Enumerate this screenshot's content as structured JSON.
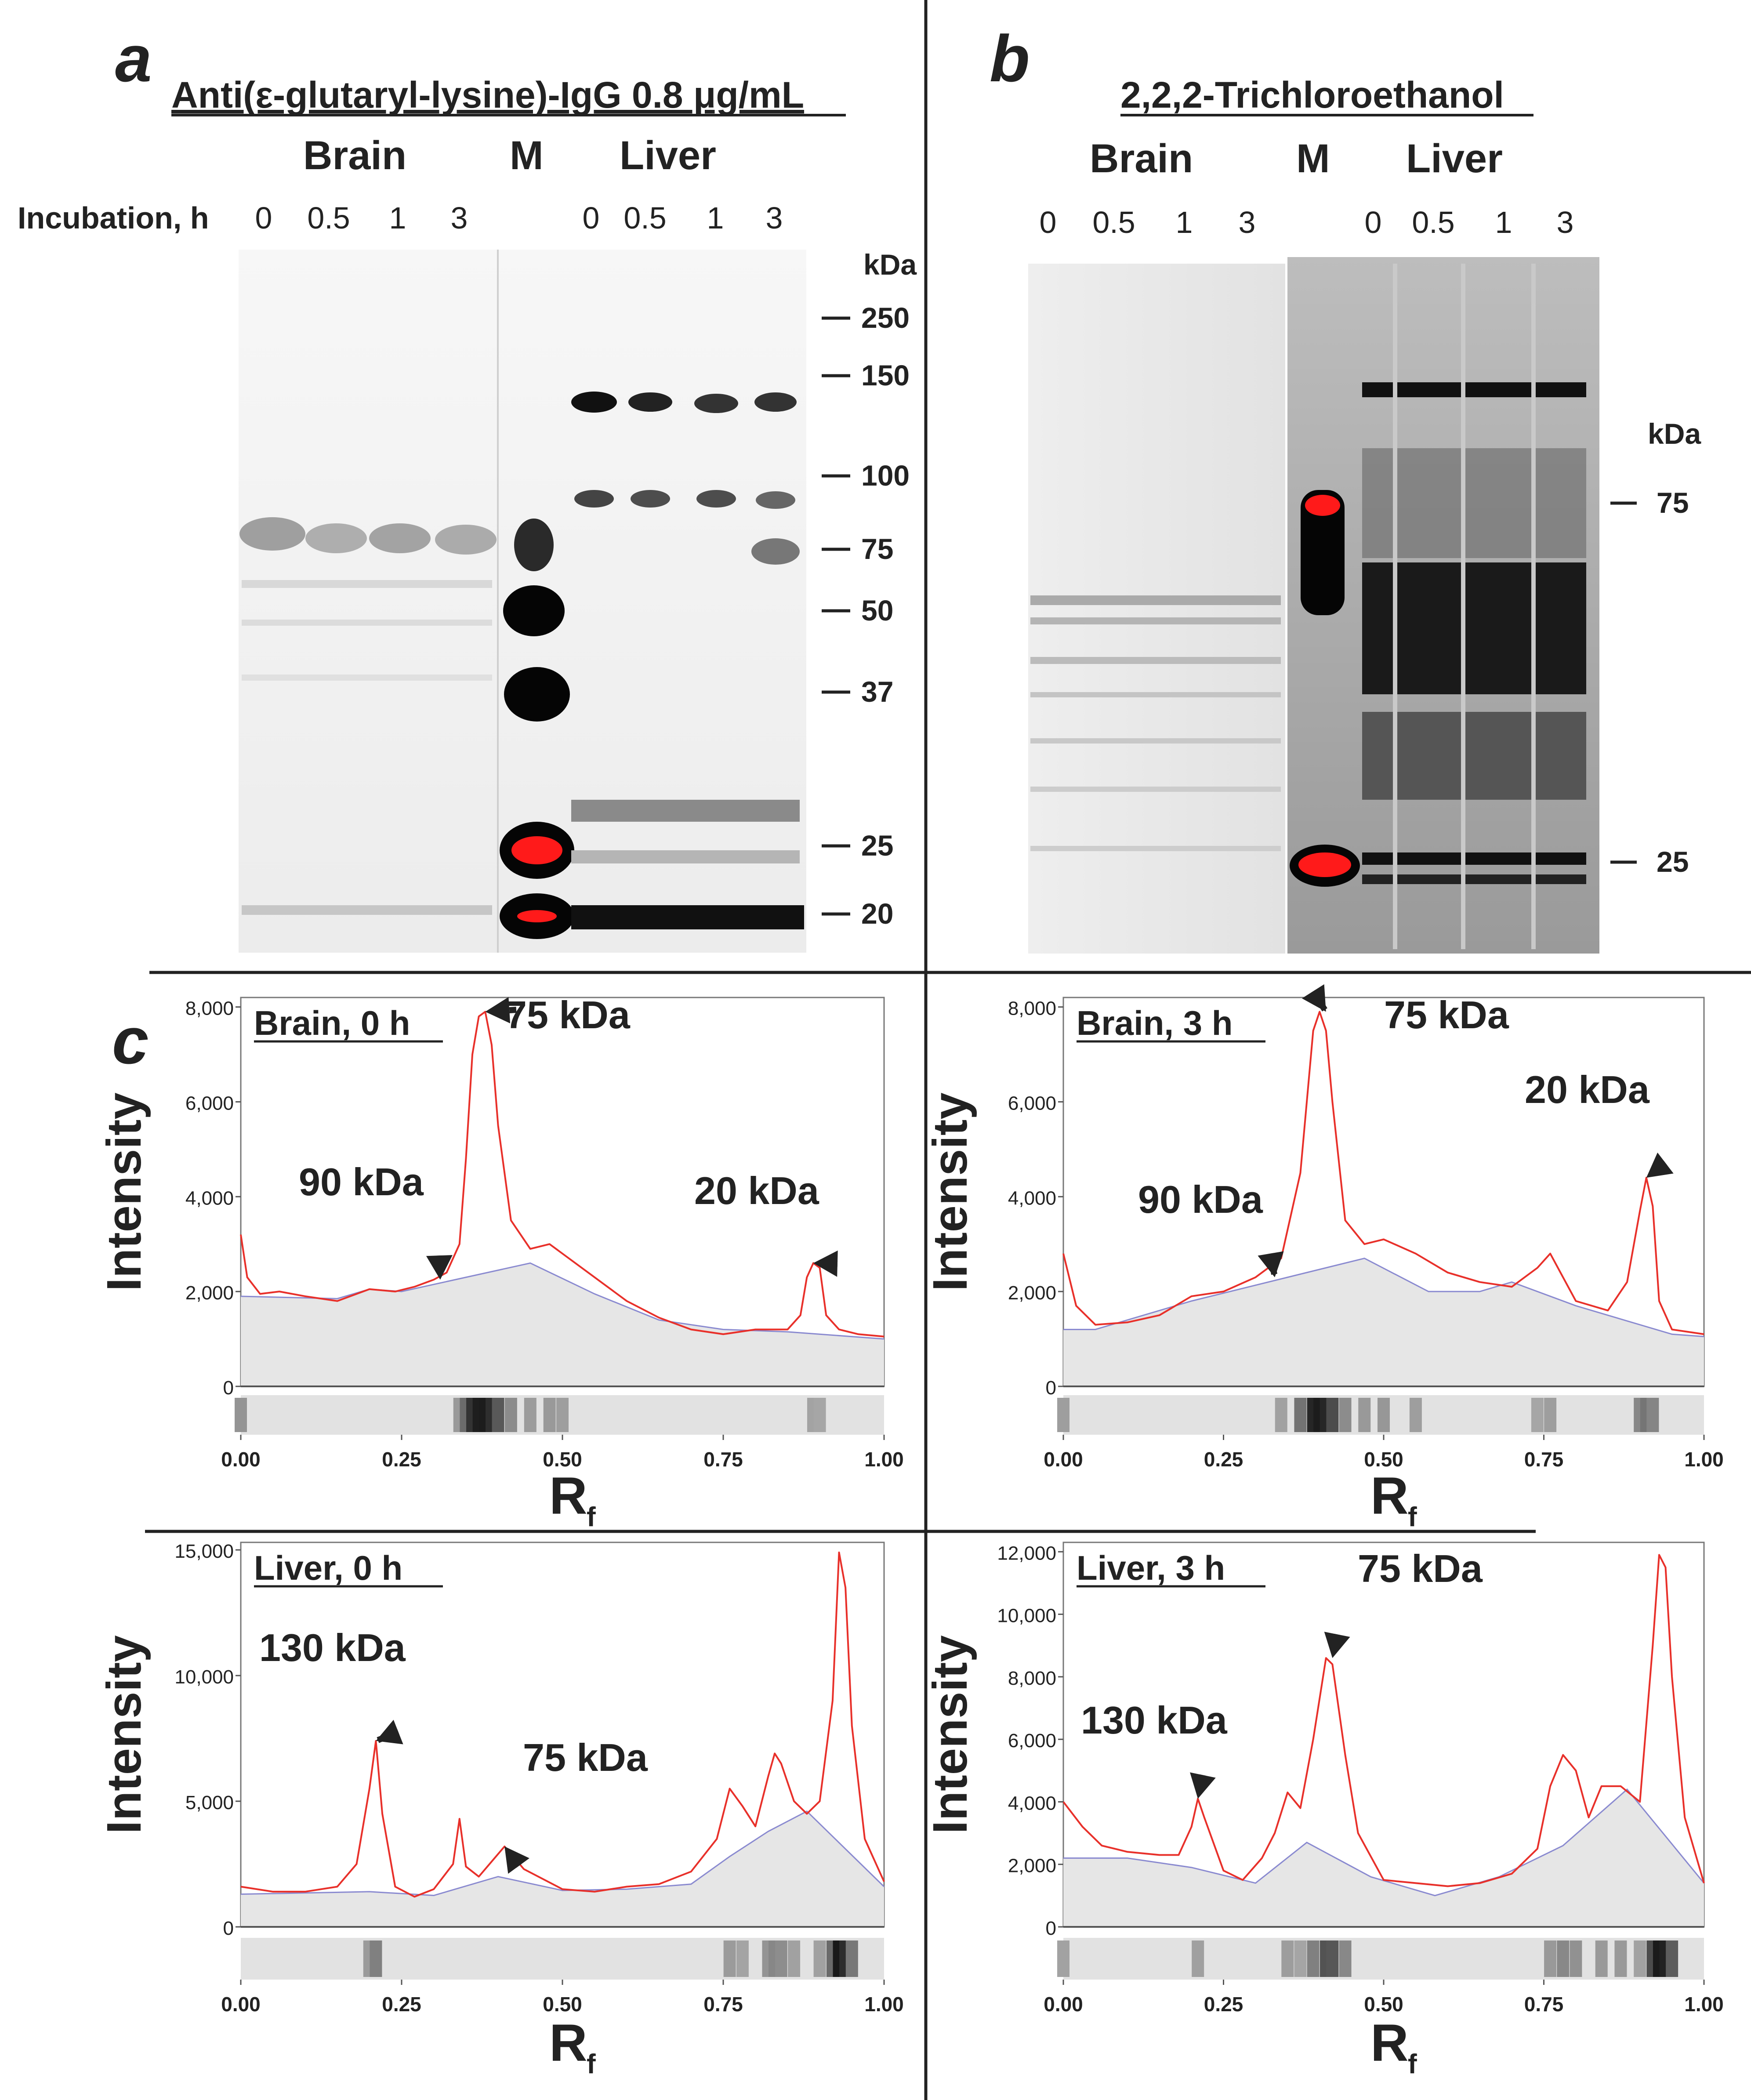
{
  "panel_a": {
    "letter": "a",
    "title": "Anti(ε-glutaryl-lysine)-IgG 0.8 μg/mL",
    "brain": "Brain",
    "marker": "M",
    "liver": "Liver",
    "incubation_label": "Incubation, h",
    "times": [
      "0",
      "0.5",
      "1",
      "3"
    ],
    "kda": "kDa",
    "markers": [
      "250",
      "150",
      "100",
      "75",
      "50",
      "37",
      "25",
      "20"
    ]
  },
  "panel_b": {
    "letter": "b",
    "title": "2,2,2-Trichloroethanol",
    "brain": "Brain",
    "marker": "M",
    "liver": "Liver",
    "times": [
      "0",
      "0.5",
      "1",
      "3"
    ],
    "kda": "kDa",
    "markers": [
      "75",
      "25"
    ]
  },
  "panel_c": {
    "letter": "c"
  },
  "colors": {
    "profile": "#e8302a",
    "baseline": "#8a8ad0",
    "fill": "#e6e6e6",
    "marker_saturation": "#ff1a1a"
  },
  "chart_data": [
    {
      "type": "line",
      "title": "Brain, 0 h",
      "xlabel": "R",
      "xlabel_sub": "f",
      "ylabel": "Intensity",
      "xlim": [
        0,
        1
      ],
      "ylim": [
        0,
        8200
      ],
      "xticks": [
        "0.00",
        "0.25",
        "0.50",
        "0.75",
        "1.00"
      ],
      "yticks": [
        {
          "v": 0,
          "label": "0"
        },
        {
          "v": 2000,
          "label": "2,000"
        },
        {
          "v": 4000,
          "label": "4,000"
        },
        {
          "v": 6000,
          "label": "6,000"
        },
        {
          "v": 8000,
          "label": "8,000"
        }
      ],
      "profile": {
        "x": [
          0,
          0.01,
          0.03,
          0.06,
          0.1,
          0.15,
          0.2,
          0.24,
          0.27,
          0.3,
          0.32,
          0.34,
          0.35,
          0.36,
          0.37,
          0.38,
          0.39,
          0.4,
          0.42,
          0.45,
          0.48,
          0.5,
          0.55,
          0.6,
          0.65,
          0.7,
          0.75,
          0.8,
          0.85,
          0.87,
          0.88,
          0.89,
          0.9,
          0.91,
          0.93,
          0.96,
          1.0
        ],
        "y": [
          3200,
          2300,
          1950,
          2000,
          1900,
          1800,
          2050,
          2000,
          2100,
          2250,
          2400,
          3000,
          4800,
          7000,
          7800,
          7900,
          7200,
          5500,
          3500,
          2900,
          3000,
          2800,
          2300,
          1800,
          1450,
          1200,
          1100,
          1200,
          1200,
          1500,
          2300,
          2600,
          2500,
          1500,
          1200,
          1100,
          1050
        ]
      },
      "baseline": {
        "x": [
          0,
          0.15,
          0.2,
          0.25,
          0.35,
          0.45,
          0.55,
          0.65,
          0.75,
          0.85,
          1.0
        ],
        "y": [
          1900,
          1850,
          2050,
          2000,
          2300,
          2600,
          1950,
          1400,
          1200,
          1150,
          1000
        ]
      },
      "annotations": [
        {
          "text": "75 kDa",
          "x": 0.38,
          "y": 7900
        },
        {
          "text": "90 kDa",
          "x": 0.31,
          "y": 2250
        },
        {
          "text": "20 kDa",
          "x": 0.89,
          "y": 2600
        }
      ]
    },
    {
      "type": "line",
      "title": "Brain, 3 h",
      "xlabel": "R",
      "xlabel_sub": "f",
      "ylabel": "Intensity",
      "xlim": [
        0,
        1
      ],
      "ylim": [
        0,
        8200
      ],
      "xticks": [
        "0.00",
        "0.25",
        "0.50",
        "0.75",
        "1.00"
      ],
      "yticks": [
        {
          "v": 0,
          "label": "0"
        },
        {
          "v": 2000,
          "label": "2,000"
        },
        {
          "v": 4000,
          "label": "4,000"
        },
        {
          "v": 6000,
          "label": "6,000"
        },
        {
          "v": 8000,
          "label": "8,000"
        }
      ],
      "profile": {
        "x": [
          0,
          0.02,
          0.05,
          0.1,
          0.15,
          0.2,
          0.25,
          0.3,
          0.34,
          0.37,
          0.39,
          0.4,
          0.41,
          0.42,
          0.44,
          0.47,
          0.5,
          0.55,
          0.6,
          0.65,
          0.7,
          0.74,
          0.76,
          0.78,
          0.8,
          0.85,
          0.88,
          0.9,
          0.91,
          0.92,
          0.93,
          0.95,
          1.0
        ],
        "y": [
          2800,
          1700,
          1300,
          1350,
          1500,
          1900,
          2000,
          2300,
          2700,
          4500,
          7500,
          7900,
          7500,
          6000,
          3500,
          3000,
          3100,
          2800,
          2400,
          2200,
          2100,
          2500,
          2800,
          2300,
          1800,
          1600,
          2200,
          3700,
          4400,
          3800,
          1800,
          1200,
          1100
        ]
      },
      "baseline": {
        "x": [
          0,
          0.05,
          0.2,
          0.35,
          0.47,
          0.57,
          0.65,
          0.7,
          0.8,
          0.95,
          1.0
        ],
        "y": [
          1200,
          1200,
          1800,
          2300,
          2700,
          2000,
          2000,
          2200,
          1700,
          1100,
          1050
        ]
      },
      "annotations": [
        {
          "text": "75 kDa",
          "x": 0.41,
          "y": 7900
        },
        {
          "text": "90 kDa",
          "x": 0.33,
          "y": 2300
        },
        {
          "text": "20 kDa",
          "x": 0.91,
          "y": 4400
        }
      ]
    },
    {
      "type": "line",
      "title": "Liver, 0 h",
      "xlabel": "R",
      "xlabel_sub": "f",
      "ylabel": "Intensity",
      "xlim": [
        0,
        1
      ],
      "ylim": [
        0,
        15300
      ],
      "xticks": [
        "0.00",
        "0.25",
        "0.50",
        "0.75",
        "1.00"
      ],
      "yticks": [
        {
          "v": 0,
          "label": "0"
        },
        {
          "v": 5000,
          "label": "5,000"
        },
        {
          "v": 10000,
          "label": "10,000"
        },
        {
          "v": 15000,
          "label": "15,000"
        }
      ],
      "profile": {
        "x": [
          0,
          0.05,
          0.1,
          0.15,
          0.18,
          0.2,
          0.21,
          0.22,
          0.24,
          0.27,
          0.3,
          0.33,
          0.34,
          0.35,
          0.37,
          0.39,
          0.41,
          0.44,
          0.5,
          0.55,
          0.6,
          0.65,
          0.7,
          0.74,
          0.76,
          0.78,
          0.8,
          0.82,
          0.83,
          0.84,
          0.86,
          0.88,
          0.9,
          0.92,
          0.93,
          0.94,
          0.95,
          0.97,
          1.0
        ],
        "y": [
          1600,
          1400,
          1400,
          1600,
          2500,
          5500,
          7400,
          4500,
          1600,
          1200,
          1500,
          2500,
          4300,
          2400,
          2000,
          2600,
          3200,
          2300,
          1500,
          1400,
          1600,
          1700,
          2200,
          3500,
          5500,
          4800,
          4000,
          6000,
          6900,
          6500,
          5000,
          4500,
          5000,
          9000,
          14900,
          13500,
          8000,
          3500,
          1800
        ]
      },
      "baseline": {
        "x": [
          0,
          0.1,
          0.2,
          0.3,
          0.4,
          0.5,
          0.6,
          0.7,
          0.76,
          0.82,
          0.88,
          1.0
        ],
        "y": [
          1300,
          1350,
          1400,
          1250,
          2000,
          1450,
          1500,
          1700,
          2800,
          3800,
          4600,
          1600
        ]
      },
      "annotations": [
        {
          "text": "130 kDa",
          "x": 0.21,
          "y": 7400
        },
        {
          "text": "75 kDa",
          "x": 0.41,
          "y": 3200
        }
      ]
    },
    {
      "type": "line",
      "title": "Liver, 3 h",
      "xlabel": "R",
      "xlabel_sub": "f",
      "ylabel": "Intensity",
      "xlim": [
        0,
        1
      ],
      "ylim": [
        0,
        12300
      ],
      "xticks": [
        "0.00",
        "0.25",
        "0.50",
        "0.75",
        "1.00"
      ],
      "yticks": [
        {
          "v": 0,
          "label": "0"
        },
        {
          "v": 2000,
          "label": "2,000"
        },
        {
          "v": 4000,
          "label": "4,000"
        },
        {
          "v": 6000,
          "label": "6,000"
        },
        {
          "v": 8000,
          "label": "8,000"
        },
        {
          "v": 10000,
          "label": "10,000"
        },
        {
          "v": 12000,
          "label": "12,000"
        }
      ],
      "profile": {
        "x": [
          0,
          0.03,
          0.06,
          0.1,
          0.15,
          0.18,
          0.2,
          0.21,
          0.22,
          0.25,
          0.28,
          0.31,
          0.33,
          0.35,
          0.37,
          0.39,
          0.41,
          0.42,
          0.44,
          0.46,
          0.5,
          0.55,
          0.6,
          0.65,
          0.7,
          0.74,
          0.76,
          0.78,
          0.8,
          0.82,
          0.84,
          0.87,
          0.9,
          0.92,
          0.93,
          0.94,
          0.95,
          0.97,
          1.0
        ],
        "y": [
          4000,
          3200,
          2600,
          2400,
          2300,
          2300,
          3200,
          4100,
          3500,
          1800,
          1500,
          2200,
          3000,
          4300,
          3800,
          6000,
          8600,
          8400,
          5500,
          3000,
          1500,
          1400,
          1300,
          1400,
          1700,
          2500,
          4500,
          5500,
          5000,
          3500,
          4500,
          4500,
          4000,
          9000,
          11900,
          11500,
          8000,
          3500,
          1400
        ]
      },
      "baseline": {
        "x": [
          0,
          0.1,
          0.2,
          0.3,
          0.38,
          0.48,
          0.58,
          0.68,
          0.78,
          0.88,
          1.0
        ],
        "y": [
          2200,
          2200,
          1900,
          1400,
          2700,
          1600,
          1000,
          1600,
          2600,
          4400,
          1400
        ]
      },
      "annotations": [
        {
          "text": "130 kDa",
          "x": 0.21,
          "y": 4100
        },
        {
          "text": "75 kDa",
          "x": 0.42,
          "y": 8600
        }
      ]
    }
  ]
}
